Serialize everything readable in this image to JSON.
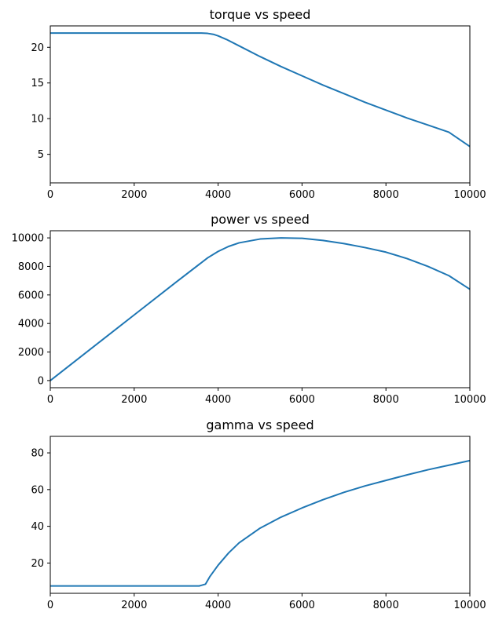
{
  "chart_data": [
    {
      "type": "line",
      "title": "torque vs speed",
      "xlabel": "",
      "ylabel": "",
      "xlim": [
        0,
        10000
      ],
      "ylim": [
        1,
        23
      ],
      "xticks": [
        0,
        2000,
        4000,
        6000,
        8000,
        10000
      ],
      "yticks": [
        5,
        10,
        15,
        20
      ],
      "grid": false,
      "color": "#1f77b4",
      "series": [
        {
          "x": [
            0,
            1000,
            2000,
            3000,
            3600,
            3750,
            3900,
            4000,
            4200,
            4500,
            5000,
            5500,
            6000,
            6500,
            7000,
            7500,
            8000,
            8500,
            9000,
            9500,
            10000
          ],
          "y": [
            22,
            22,
            22,
            22,
            22,
            21.95,
            21.8,
            21.6,
            21.1,
            20.2,
            18.7,
            17.3,
            16.0,
            14.7,
            13.5,
            12.3,
            11.2,
            10.1,
            9.1,
            8.1,
            6.1
          ]
        }
      ]
    },
    {
      "type": "line",
      "title": "power vs speed",
      "xlabel": "",
      "ylabel": "",
      "xlim": [
        0,
        10000
      ],
      "ylim": [
        -500,
        10500
      ],
      "xticks": [
        0,
        2000,
        4000,
        6000,
        8000,
        10000
      ],
      "yticks": [
        0,
        2000,
        4000,
        6000,
        8000,
        10000
      ],
      "grid": false,
      "color": "#1f77b4",
      "series": [
        {
          "x": [
            0,
            1000,
            2000,
            3000,
            3750,
            4000,
            4250,
            4500,
            5000,
            5500,
            6000,
            6500,
            7000,
            7500,
            8000,
            8500,
            9000,
            9500,
            10000
          ],
          "y": [
            0,
            2300,
            4600,
            6900,
            8600,
            9050,
            9400,
            9650,
            9920,
            10000,
            9970,
            9820,
            9600,
            9320,
            9000,
            8550,
            8000,
            7350,
            6400
          ]
        }
      ]
    },
    {
      "type": "line",
      "title": "gamma vs speed",
      "xlabel": "",
      "ylabel": "",
      "xlim": [
        0,
        10000
      ],
      "ylim": [
        3.5,
        89
      ],
      "xticks": [
        0,
        2000,
        4000,
        6000,
        8000,
        10000
      ],
      "yticks": [
        20,
        40,
        60,
        80
      ],
      "grid": false,
      "color": "#1f77b4",
      "series": [
        {
          "x": [
            0,
            1000,
            2000,
            3000,
            3550,
            3700,
            3800,
            4000,
            4250,
            4500,
            5000,
            5500,
            6000,
            6500,
            7000,
            7500,
            8000,
            8500,
            9000,
            9500,
            10000
          ],
          "y": [
            7.5,
            7.5,
            7.5,
            7.5,
            7.5,
            8.5,
            12.5,
            18.8,
            25.5,
            31.0,
            39.0,
            45.0,
            50.0,
            54.5,
            58.5,
            62.0,
            65.0,
            68.0,
            70.8,
            73.3,
            75.8
          ]
        }
      ]
    }
  ]
}
